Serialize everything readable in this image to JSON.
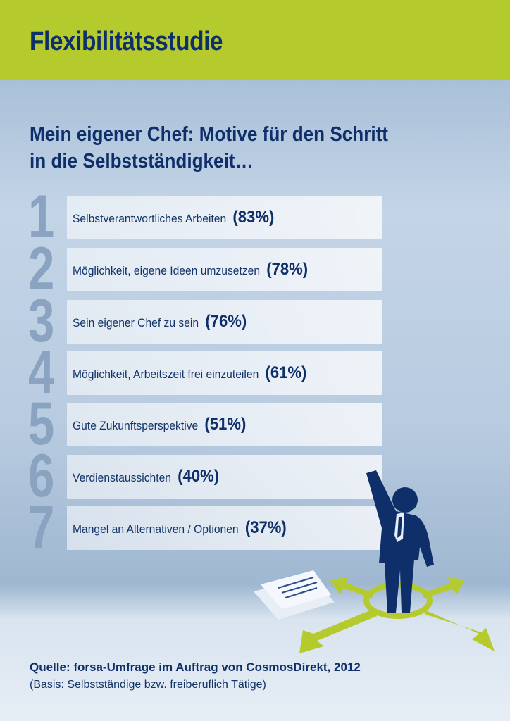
{
  "header": {
    "title": "Flexibilitätsstudie"
  },
  "subtitle": [
    "Mein eigener Chef: Motive für den Schritt",
    "in die Selbstständigkeit…"
  ],
  "items": [
    {
      "rank": "1",
      "label": "Selbstverantwortliches Arbeiten",
      "percent": "(83%)"
    },
    {
      "rank": "2",
      "label": "Möglichkeit, eigene Ideen umzusetzen",
      "percent": "(78%)"
    },
    {
      "rank": "3",
      "label": "Sein eigener Chef zu sein",
      "percent": "(76%)"
    },
    {
      "rank": "4",
      "label": "Möglichkeit, Arbeitszeit frei einzuteilen",
      "percent": "(61%)"
    },
    {
      "rank": "5",
      "label": "Gute Zukunftsperspektive",
      "percent": "(51%)"
    },
    {
      "rank": "6",
      "label": "Verdienstaussichten",
      "percent": "(40%)"
    },
    {
      "rank": "7",
      "label": "Mangel an Alternativen / Optionen",
      "percent": "(37%)"
    }
  ],
  "source": {
    "line1": "Quelle: forsa-Umfrage im Auftrag von CosmosDirekt, 2012",
    "line2": "(Basis: Selbstständige bzw. freiberuflich Tätige)"
  },
  "colors": {
    "green": "#b5cb2d",
    "navy": "#0f2f6a",
    "numeral": "#8aa3c1"
  }
}
